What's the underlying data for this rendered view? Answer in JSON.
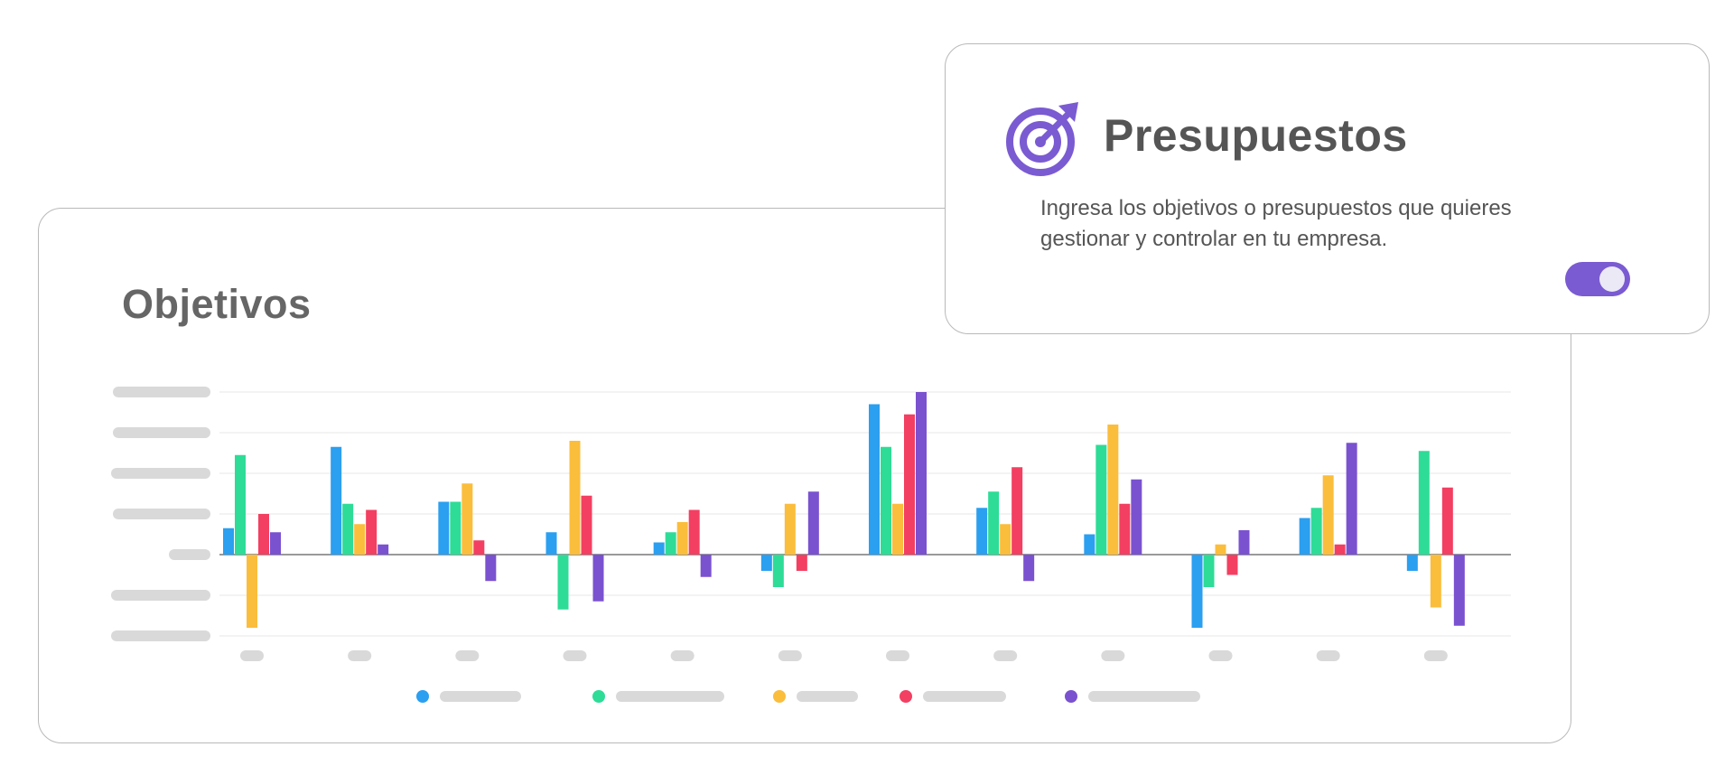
{
  "chart_card": {
    "title": "Objetivos"
  },
  "budget_card": {
    "title": "Presupuestos",
    "description": "Ingresa los objetivos o presupuestos que quieres gestionar y controlar en tu empresa.",
    "icon": "target-arrow-icon",
    "toggle_on": true,
    "accent_color": "#7a5bd2"
  },
  "chart_data": {
    "type": "bar",
    "categories": [
      "",
      "",
      "",
      "",
      "",
      "",
      "",
      "",
      "",
      "",
      "",
      ""
    ],
    "series": [
      {
        "color": "#2b9ff0",
        "values": [
          0.65,
          2.65,
          1.3,
          0.55,
          0.3,
          -0.4,
          3.7,
          1.15,
          0.5,
          -1.8,
          0.9,
          -0.4
        ]
      },
      {
        "color": "#2edc97",
        "values": [
          2.45,
          1.25,
          1.3,
          -1.35,
          0.55,
          -0.8,
          2.65,
          1.55,
          2.7,
          -0.8,
          1.15,
          2.55
        ]
      },
      {
        "color": "#fbbd3c",
        "values": [
          -1.8,
          0.75,
          1.75,
          2.8,
          0.8,
          1.25,
          1.25,
          0.75,
          3.2,
          0.25,
          1.95,
          -1.3
        ]
      },
      {
        "color": "#f33f61",
        "values": [
          1.0,
          1.1,
          0.35,
          1.45,
          1.1,
          -0.4,
          3.45,
          2.15,
          1.25,
          -0.5,
          0.25,
          1.65
        ]
      },
      {
        "color": "#7a52d0",
        "values": [
          0.55,
          0.25,
          -0.65,
          -1.15,
          -0.55,
          1.55,
          4.0,
          -0.65,
          1.85,
          0.6,
          2.75,
          -1.75
        ]
      }
    ],
    "ylim": [
      -2,
      4
    ],
    "grid": true,
    "legend": "bottom"
  }
}
